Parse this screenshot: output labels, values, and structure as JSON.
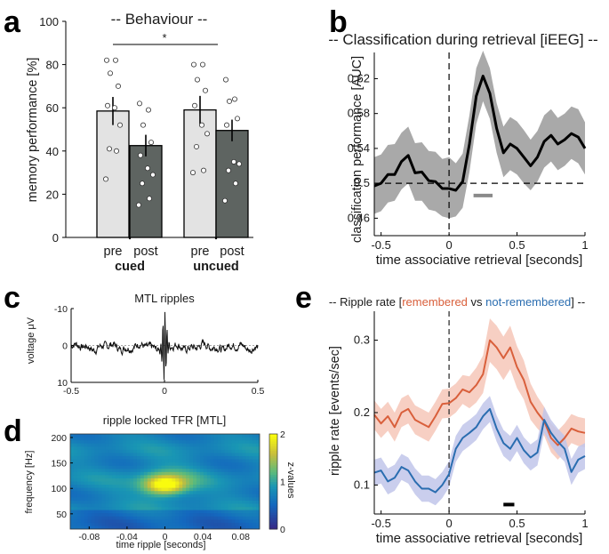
{
  "panels": {
    "a": {
      "label": "a"
    },
    "b": {
      "label": "b"
    },
    "c": {
      "label": "c"
    },
    "d": {
      "label": "d"
    },
    "e": {
      "label": "e"
    }
  },
  "chart_data": [
    {
      "id": "a",
      "type": "bar",
      "title": "-- Behaviour --",
      "ylabel": "memory performance [%]",
      "ylim": [
        0,
        100
      ],
      "yticks": [
        0,
        20,
        40,
        60,
        80,
        100
      ],
      "categories": [
        "pre",
        "post",
        "pre",
        "post"
      ],
      "groups": [
        "cued",
        "uncued"
      ],
      "values": [
        58.5,
        42.5,
        59,
        49.5
      ],
      "errors": [
        6.5,
        5,
        6.5,
        5
      ],
      "bar_colors": [
        "#e3e3e3",
        "#5e6461",
        "#e3e3e3",
        "#5e6461"
      ],
      "points": [
        [
          82,
          82,
          76,
          70,
          61,
          60,
          52,
          41,
          40,
          27
        ],
        [
          62,
          59,
          52,
          44,
          38,
          32,
          29,
          25,
          18,
          15
        ],
        [
          80,
          80,
          73,
          68,
          61,
          52,
          48,
          42,
          31,
          30
        ],
        [
          73,
          64,
          63,
          55,
          52,
          35,
          34,
          31,
          25,
          17
        ]
      ],
      "significance": {
        "from": "cued post",
        "to": "uncued post",
        "label": "*"
      }
    },
    {
      "id": "b",
      "type": "line",
      "title": "-- Classification during retrieval [iEEG] --",
      "xlabel": "time associative retrieval [seconds]",
      "ylabel": "classification performance [AUC]",
      "xlim": [
        -0.55,
        1
      ],
      "ylim": [
        0.44,
        0.65
      ],
      "xticks": [
        -0.5,
        0,
        0.5,
        1
      ],
      "xtick_labels": [
        "-0.5",
        "0",
        "0.5",
        "1"
      ],
      "yticks": [
        0.46,
        0.5,
        0.54,
        0.58,
        0.62
      ],
      "ytick_labels": [
        "0.46",
        "0.5",
        "0.54",
        "0.58",
        "0.62"
      ],
      "chance": 0.5,
      "onset": 0,
      "x": [
        -0.55,
        -0.5,
        -0.45,
        -0.4,
        -0.35,
        -0.3,
        -0.25,
        -0.2,
        -0.15,
        -0.1,
        -0.05,
        0,
        0.05,
        0.1,
        0.15,
        0.2,
        0.25,
        0.3,
        0.35,
        0.4,
        0.45,
        0.5,
        0.55,
        0.6,
        0.65,
        0.7,
        0.75,
        0.8,
        0.85,
        0.9,
        0.95,
        1
      ],
      "series": [
        {
          "name": "AUC",
          "mean": [
            0.497,
            0.5,
            0.51,
            0.51,
            0.525,
            0.532,
            0.512,
            0.513,
            0.503,
            0.502,
            0.494,
            0.494,
            0.492,
            0.502,
            0.545,
            0.6,
            0.623,
            0.603,
            0.563,
            0.535,
            0.545,
            0.54,
            0.53,
            0.52,
            0.53,
            0.548,
            0.555,
            0.545,
            0.55,
            0.557,
            0.553,
            0.54
          ],
          "lower": [
            0.465,
            0.468,
            0.478,
            0.48,
            0.493,
            0.5,
            0.48,
            0.48,
            0.47,
            0.468,
            0.462,
            0.46,
            0.462,
            0.472,
            0.513,
            0.568,
            0.594,
            0.574,
            0.535,
            0.507,
            0.515,
            0.51,
            0.5,
            0.492,
            0.502,
            0.518,
            0.525,
            0.515,
            0.52,
            0.528,
            0.523,
            0.51
          ],
          "upper": [
            0.53,
            0.533,
            0.544,
            0.545,
            0.558,
            0.565,
            0.546,
            0.547,
            0.537,
            0.536,
            0.528,
            0.53,
            0.523,
            0.534,
            0.578,
            0.632,
            0.652,
            0.632,
            0.592,
            0.565,
            0.576,
            0.571,
            0.561,
            0.55,
            0.56,
            0.578,
            0.585,
            0.575,
            0.58,
            0.588,
            0.585,
            0.57
          ]
        }
      ],
      "significant_window": [
        0.18,
        0.32
      ],
      "significant_level": 0.486
    },
    {
      "id": "c",
      "type": "line",
      "title": "MTL ripples",
      "ylabel": "voltage μV",
      "xlim": [
        -0.5,
        0.5
      ],
      "xticks": [
        -0.5,
        0,
        0.5
      ],
      "xtick_labels": [
        "-0.5",
        "0",
        "0.5"
      ],
      "yticks": [
        -10,
        0,
        10
      ],
      "ytick_labels": [
        "-10",
        "0",
        "10"
      ]
    },
    {
      "id": "d",
      "type": "heatmap",
      "title": "ripple locked TFR [MTL]",
      "xlabel": "time ripple [seconds]",
      "ylabel": "frequency [Hz]",
      "colorbar_label": "z-values",
      "colorbar_ticks": [
        "0",
        "1",
        "2"
      ],
      "xticks": [
        -0.08,
        -0.04,
        0,
        0.04,
        0.08
      ],
      "xtick_labels": [
        "-0.08",
        "-0.04",
        "0",
        "0.04",
        "0.08"
      ],
      "yticks": [
        50,
        100,
        150,
        200
      ],
      "ytick_labels": [
        "50",
        "100",
        "150",
        "200"
      ],
      "peak": {
        "time": 0,
        "frequency": 100,
        "z": 2
      }
    },
    {
      "id": "e",
      "type": "line",
      "title_prefix": "-- Ripple rate [",
      "title_remembered": "remembered",
      "title_vs": " vs ",
      "title_not": "not-remembered",
      "title_suffix": "] --",
      "xlabel": "time associative retrieval [seconds]",
      "ylabel": "ripple rate [events/sec]",
      "xlim": [
        -0.55,
        1
      ],
      "ylim": [
        0.06,
        0.34
      ],
      "xticks": [
        -0.5,
        0,
        0.5,
        1
      ],
      "xtick_labels": [
        "-0.5",
        "0",
        "0.5",
        "1"
      ],
      "yticks": [
        0.1,
        0.2,
        0.3
      ],
      "ytick_labels": [
        "0.1",
        "0.2",
        "0.3"
      ],
      "onset": 0,
      "x": [
        -0.55,
        -0.5,
        -0.45,
        -0.4,
        -0.35,
        -0.3,
        -0.25,
        -0.2,
        -0.15,
        -0.1,
        -0.05,
        0,
        0.05,
        0.1,
        0.15,
        0.2,
        0.25,
        0.3,
        0.35,
        0.4,
        0.45,
        0.5,
        0.55,
        0.6,
        0.65,
        0.7,
        0.75,
        0.8,
        0.85,
        0.9,
        0.95,
        1
      ],
      "series": [
        {
          "name": "remembered",
          "color": "#d95f3b",
          "mean": [
            0.197,
            0.185,
            0.195,
            0.18,
            0.2,
            0.205,
            0.19,
            0.185,
            0.18,
            0.195,
            0.212,
            0.213,
            0.22,
            0.232,
            0.228,
            0.238,
            0.253,
            0.3,
            0.29,
            0.275,
            0.29,
            0.263,
            0.245,
            0.215,
            0.2,
            0.188,
            0.165,
            0.155,
            0.165,
            0.178,
            0.174,
            0.172
          ],
          "halfwidth": [
            0.02,
            0.02,
            0.02,
            0.02,
            0.02,
            0.02,
            0.02,
            0.02,
            0.02,
            0.02,
            0.02,
            0.02,
            0.02,
            0.02,
            0.022,
            0.024,
            0.026,
            0.03,
            0.03,
            0.03,
            0.03,
            0.029,
            0.027,
            0.025,
            0.022,
            0.02,
            0.02,
            0.02,
            0.02,
            0.02,
            0.02,
            0.02
          ]
        },
        {
          "name": "not-remembered",
          "color": "#2a6db0",
          "mean": [
            0.117,
            0.12,
            0.105,
            0.11,
            0.125,
            0.12,
            0.105,
            0.095,
            0.095,
            0.09,
            0.1,
            0.115,
            0.15,
            0.165,
            0.172,
            0.18,
            0.195,
            0.205,
            0.178,
            0.158,
            0.15,
            0.165,
            0.148,
            0.138,
            0.145,
            0.19,
            0.172,
            0.16,
            0.15,
            0.118,
            0.135,
            0.14
          ],
          "halfwidth": [
            0.018,
            0.018,
            0.018,
            0.018,
            0.018,
            0.018,
            0.018,
            0.018,
            0.018,
            0.018,
            0.018,
            0.018,
            0.018,
            0.018,
            0.018,
            0.018,
            0.018,
            0.018,
            0.018,
            0.018,
            0.018,
            0.018,
            0.018,
            0.018,
            0.018,
            0.018,
            0.018,
            0.018,
            0.018,
            0.018,
            0.018,
            0.018
          ]
        }
      ],
      "significant_window": [
        0.4,
        0.48
      ],
      "significant_level": 0.073
    }
  ]
}
